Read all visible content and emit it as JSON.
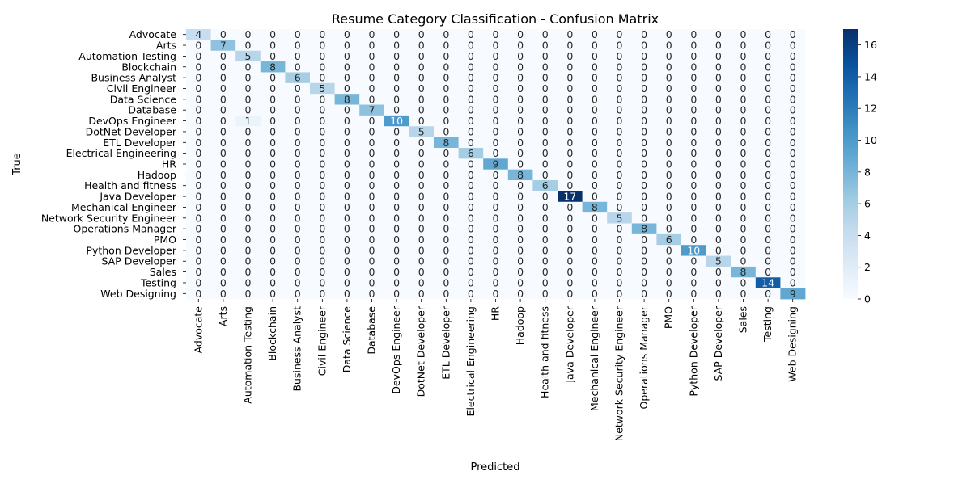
{
  "chart_data": {
    "type": "heatmap",
    "title": "Resume Category Classification - Confusion Matrix",
    "xlabel": "Predicted",
    "ylabel": "True",
    "categories": [
      "Advocate",
      "Arts",
      "Automation Testing",
      "Blockchain",
      "Business Analyst",
      "Civil Engineer",
      "Data Science",
      "Database",
      "DevOps Engineer",
      "DotNet Developer",
      "ETL Developer",
      "Electrical Engineering",
      "HR",
      "Hadoop",
      "Health and fitness",
      "Java Developer",
      "Mechanical Engineer",
      "Network Security Engineer",
      "Operations Manager",
      "PMO",
      "Python Developer",
      "SAP Developer",
      "Sales",
      "Testing",
      "Web Designing"
    ],
    "matrix": [
      [
        4,
        0,
        0,
        0,
        0,
        0,
        0,
        0,
        0,
        0,
        0,
        0,
        0,
        0,
        0,
        0,
        0,
        0,
        0,
        0,
        0,
        0,
        0,
        0,
        0
      ],
      [
        0,
        7,
        0,
        0,
        0,
        0,
        0,
        0,
        0,
        0,
        0,
        0,
        0,
        0,
        0,
        0,
        0,
        0,
        0,
        0,
        0,
        0,
        0,
        0,
        0
      ],
      [
        0,
        0,
        5,
        0,
        0,
        0,
        0,
        0,
        0,
        0,
        0,
        0,
        0,
        0,
        0,
        0,
        0,
        0,
        0,
        0,
        0,
        0,
        0,
        0,
        0
      ],
      [
        0,
        0,
        0,
        8,
        0,
        0,
        0,
        0,
        0,
        0,
        0,
        0,
        0,
        0,
        0,
        0,
        0,
        0,
        0,
        0,
        0,
        0,
        0,
        0,
        0
      ],
      [
        0,
        0,
        0,
        0,
        6,
        0,
        0,
        0,
        0,
        0,
        0,
        0,
        0,
        0,
        0,
        0,
        0,
        0,
        0,
        0,
        0,
        0,
        0,
        0,
        0
      ],
      [
        0,
        0,
        0,
        0,
        0,
        5,
        0,
        0,
        0,
        0,
        0,
        0,
        0,
        0,
        0,
        0,
        0,
        0,
        0,
        0,
        0,
        0,
        0,
        0,
        0
      ],
      [
        0,
        0,
        0,
        0,
        0,
        0,
        8,
        0,
        0,
        0,
        0,
        0,
        0,
        0,
        0,
        0,
        0,
        0,
        0,
        0,
        0,
        0,
        0,
        0,
        0
      ],
      [
        0,
        0,
        0,
        0,
        0,
        0,
        0,
        7,
        0,
        0,
        0,
        0,
        0,
        0,
        0,
        0,
        0,
        0,
        0,
        0,
        0,
        0,
        0,
        0,
        0
      ],
      [
        0,
        0,
        1,
        0,
        0,
        0,
        0,
        0,
        10,
        0,
        0,
        0,
        0,
        0,
        0,
        0,
        0,
        0,
        0,
        0,
        0,
        0,
        0,
        0,
        0
      ],
      [
        0,
        0,
        0,
        0,
        0,
        0,
        0,
        0,
        0,
        5,
        0,
        0,
        0,
        0,
        0,
        0,
        0,
        0,
        0,
        0,
        0,
        0,
        0,
        0,
        0
      ],
      [
        0,
        0,
        0,
        0,
        0,
        0,
        0,
        0,
        0,
        0,
        8,
        0,
        0,
        0,
        0,
        0,
        0,
        0,
        0,
        0,
        0,
        0,
        0,
        0,
        0
      ],
      [
        0,
        0,
        0,
        0,
        0,
        0,
        0,
        0,
        0,
        0,
        0,
        6,
        0,
        0,
        0,
        0,
        0,
        0,
        0,
        0,
        0,
        0,
        0,
        0,
        0
      ],
      [
        0,
        0,
        0,
        0,
        0,
        0,
        0,
        0,
        0,
        0,
        0,
        0,
        9,
        0,
        0,
        0,
        0,
        0,
        0,
        0,
        0,
        0,
        0,
        0,
        0
      ],
      [
        0,
        0,
        0,
        0,
        0,
        0,
        0,
        0,
        0,
        0,
        0,
        0,
        0,
        8,
        0,
        0,
        0,
        0,
        0,
        0,
        0,
        0,
        0,
        0,
        0
      ],
      [
        0,
        0,
        0,
        0,
        0,
        0,
        0,
        0,
        0,
        0,
        0,
        0,
        0,
        0,
        6,
        0,
        0,
        0,
        0,
        0,
        0,
        0,
        0,
        0,
        0
      ],
      [
        0,
        0,
        0,
        0,
        0,
        0,
        0,
        0,
        0,
        0,
        0,
        0,
        0,
        0,
        0,
        17,
        0,
        0,
        0,
        0,
        0,
        0,
        0,
        0,
        0
      ],
      [
        0,
        0,
        0,
        0,
        0,
        0,
        0,
        0,
        0,
        0,
        0,
        0,
        0,
        0,
        0,
        0,
        8,
        0,
        0,
        0,
        0,
        0,
        0,
        0,
        0
      ],
      [
        0,
        0,
        0,
        0,
        0,
        0,
        0,
        0,
        0,
        0,
        0,
        0,
        0,
        0,
        0,
        0,
        0,
        5,
        0,
        0,
        0,
        0,
        0,
        0,
        0
      ],
      [
        0,
        0,
        0,
        0,
        0,
        0,
        0,
        0,
        0,
        0,
        0,
        0,
        0,
        0,
        0,
        0,
        0,
        0,
        8,
        0,
        0,
        0,
        0,
        0,
        0
      ],
      [
        0,
        0,
        0,
        0,
        0,
        0,
        0,
        0,
        0,
        0,
        0,
        0,
        0,
        0,
        0,
        0,
        0,
        0,
        0,
        6,
        0,
        0,
        0,
        0,
        0
      ],
      [
        0,
        0,
        0,
        0,
        0,
        0,
        0,
        0,
        0,
        0,
        0,
        0,
        0,
        0,
        0,
        0,
        0,
        0,
        0,
        0,
        10,
        0,
        0,
        0,
        0
      ],
      [
        0,
        0,
        0,
        0,
        0,
        0,
        0,
        0,
        0,
        0,
        0,
        0,
        0,
        0,
        0,
        0,
        0,
        0,
        0,
        0,
        0,
        5,
        0,
        0,
        0
      ],
      [
        0,
        0,
        0,
        0,
        0,
        0,
        0,
        0,
        0,
        0,
        0,
        0,
        0,
        0,
        0,
        0,
        0,
        0,
        0,
        0,
        0,
        0,
        8,
        0,
        0
      ],
      [
        0,
        0,
        0,
        0,
        0,
        0,
        0,
        0,
        0,
        0,
        0,
        0,
        0,
        0,
        0,
        0,
        0,
        0,
        0,
        0,
        0,
        0,
        0,
        14,
        0
      ],
      [
        0,
        0,
        0,
        0,
        0,
        0,
        0,
        0,
        0,
        0,
        0,
        0,
        0,
        0,
        0,
        0,
        0,
        0,
        0,
        0,
        0,
        0,
        0,
        0,
        9
      ]
    ],
    "colormap": "Blues",
    "colorbar": {
      "min": 0,
      "max": 17,
      "ticks": [
        0,
        2,
        4,
        6,
        8,
        10,
        12,
        14,
        16
      ]
    },
    "grid": false,
    "legend": "colorbar-right"
  }
}
